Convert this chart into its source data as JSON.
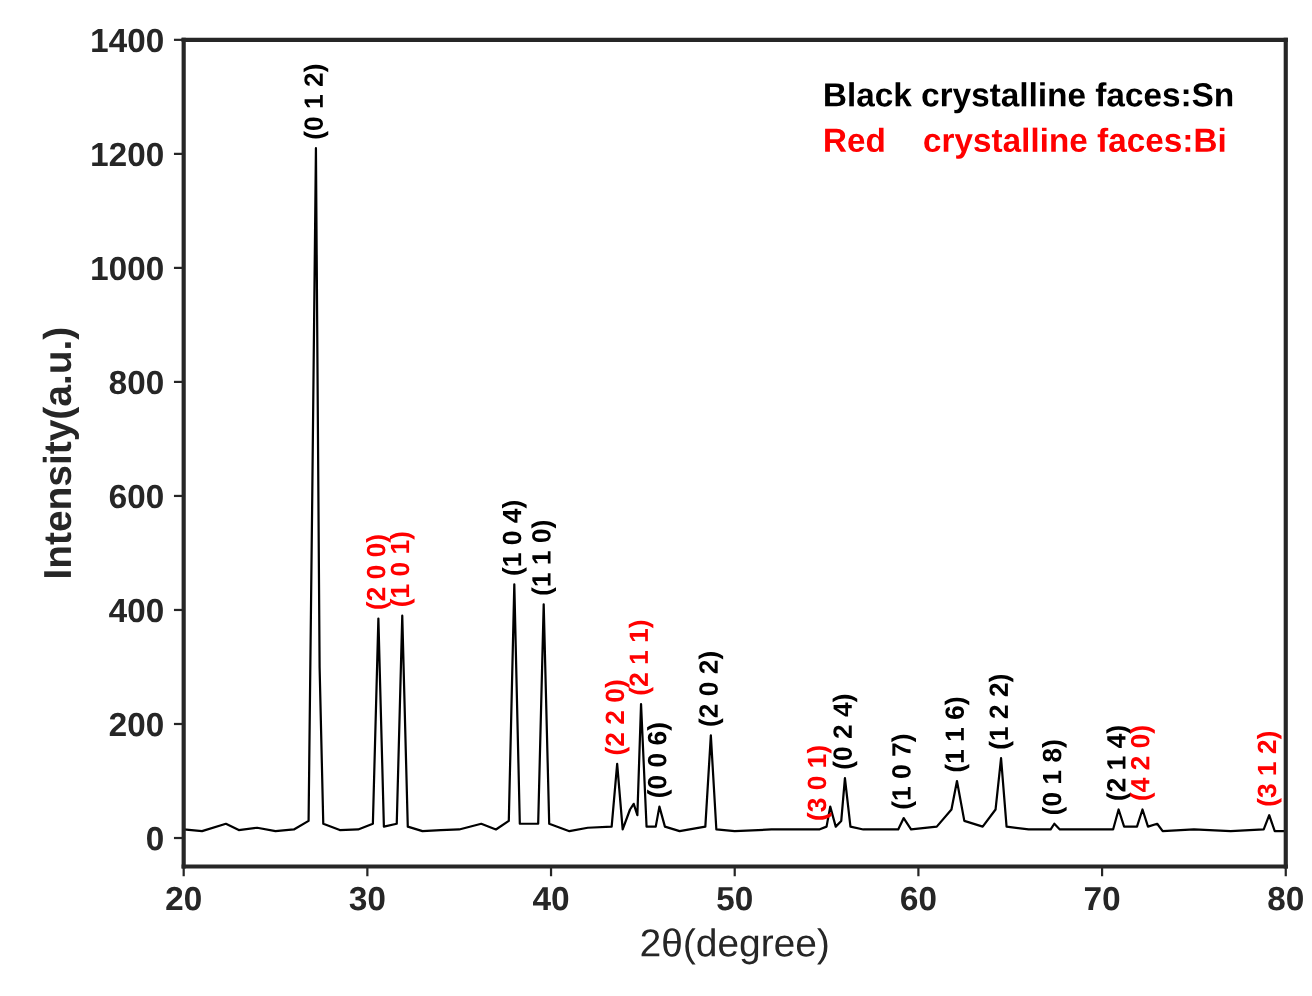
{
  "chart_data": {
    "type": "line",
    "xlabel": "2θ(degree)",
    "ylabel": "Intensity(a.u.)",
    "xlim": [
      20,
      80
    ],
    "ylim": [
      -50,
      1400
    ],
    "xticks": [
      20,
      30,
      40,
      50,
      60,
      70,
      80
    ],
    "yticks": [
      0,
      200,
      400,
      600,
      800,
      1000,
      1200,
      1400
    ],
    "grid": false,
    "legend": false,
    "series": [
      {
        "color": "#000000",
        "x": [
          20,
          21,
          22.3,
          23,
          24,
          25,
          26,
          26.8,
          27.0,
          27.2,
          27.4,
          27.6,
          28.5,
          29.5,
          30.3,
          30.6,
          30.9,
          31.6,
          31.9,
          32.2,
          33,
          34,
          35,
          36.2,
          37,
          37.7,
          38.0,
          38.3,
          39.3,
          39.6,
          39.9,
          41,
          42,
          43.3,
          43.6,
          43.9,
          44.3,
          44.5,
          44.7,
          44.9,
          45.2,
          45.7,
          45.9,
          46.2,
          47,
          48.4,
          48.7,
          49.0,
          50,
          52,
          54.6,
          55.0,
          55.2,
          55.5,
          55.8,
          56.0,
          56.3,
          57,
          58.9,
          59.2,
          59.6,
          61,
          61.8,
          62.1,
          62.5,
          63.5,
          64.2,
          64.5,
          64.8,
          66,
          67.2,
          67.4,
          67.7,
          69,
          70.6,
          70.9,
          71.2,
          71.9,
          72.2,
          72.5,
          73.0,
          73.3,
          75,
          77,
          78.8,
          79.1,
          79.4,
          80
        ],
        "values": [
          15,
          12,
          25,
          14,
          18,
          12,
          15,
          30,
          600,
          1210,
          300,
          25,
          14,
          15,
          25,
          385,
          20,
          25,
          390,
          20,
          12,
          14,
          15,
          25,
          15,
          30,
          445,
          25,
          25,
          410,
          25,
          12,
          18,
          20,
          130,
          15,
          50,
          60,
          40,
          235,
          20,
          20,
          55,
          20,
          12,
          20,
          180,
          15,
          12,
          15,
          15,
          20,
          55,
          20,
          30,
          105,
          20,
          15,
          15,
          35,
          15,
          20,
          50,
          100,
          30,
          20,
          50,
          140,
          20,
          15,
          15,
          25,
          15,
          15,
          15,
          50,
          20,
          20,
          50,
          20,
          25,
          12,
          15,
          12,
          15,
          40,
          12,
          12
        ]
      }
    ],
    "annotations": [
      {
        "text": "(0 1 2)",
        "x": 27.2,
        "y": 1210
      },
      {
        "text": "(2 0 0)",
        "x": 30.6,
        "y": 385
      },
      {
        "text": "(1 0 1)",
        "x": 31.9,
        "y": 390
      },
      {
        "text": "(1 0 4)",
        "x": 38.0,
        "y": 445
      },
      {
        "text": "(1 1 0)",
        "x": 39.6,
        "y": 410
      },
      {
        "text": "(2 2 0)",
        "x": 43.6,
        "y": 130
      },
      {
        "text": "(2 1 1)",
        "x": 44.9,
        "y": 235
      },
      {
        "text": "(0 0 6)",
        "x": 45.9,
        "y": 55
      },
      {
        "text": "(2 0 2)",
        "x": 48.7,
        "y": 180
      },
      {
        "text": "(3 0 1)",
        "x": 54.6,
        "y": 15
      },
      {
        "text": "(0 2 4)",
        "x": 56.0,
        "y": 105
      },
      {
        "text": "(1 0 7)",
        "x": 59.2,
        "y": 35
      },
      {
        "text": "(1 1 6)",
        "x": 62.1,
        "y": 100
      },
      {
        "text": "(1 2 2)",
        "x": 64.5,
        "y": 140
      },
      {
        "text": "(0 1 8)",
        "x": 67.4,
        "y": 25
      },
      {
        "text": "(2 1 4)",
        "x": 70.9,
        "y": 50
      },
      {
        "text": "(4 2 0)",
        "x": 72.2,
        "y": 50
      },
      {
        "text": "(3 1 2)",
        "x": 79.1,
        "y": 40
      },
      "Black crystalline faces:Sn",
      "Red    crystalline faces:Bi"
    ]
  }
}
